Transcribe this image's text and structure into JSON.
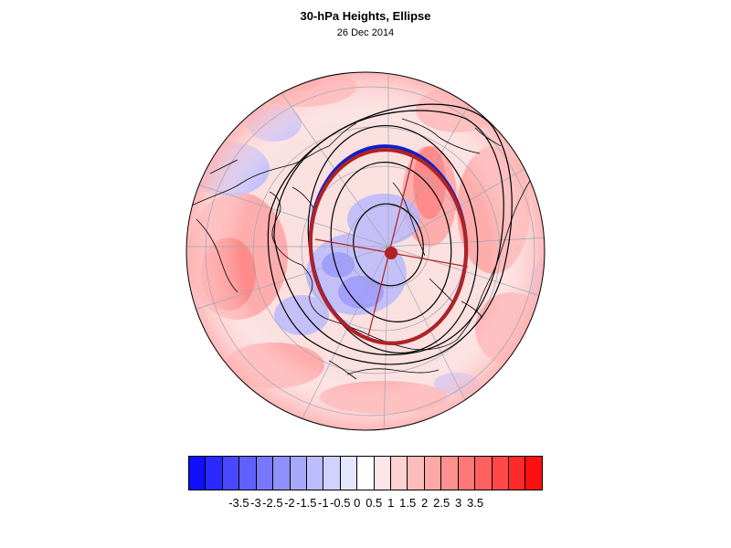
{
  "title": "30-hPa Heights, Ellipse",
  "subtitle": "26 Dec 2014",
  "colorbar": {
    "colors": [
      "#1010ff",
      "#2a2aff",
      "#4848ff",
      "#6060ff",
      "#7878ff",
      "#9090ff",
      "#a8a8ff",
      "#bcbcff",
      "#d2d2ff",
      "#e6e6ff",
      "#ffffff",
      "#ffe6e6",
      "#ffd2d2",
      "#ffbcbc",
      "#ffa8a8",
      "#ff9090",
      "#ff7878",
      "#ff6060",
      "#ff4848",
      "#ff2a2a",
      "#ff1010"
    ],
    "tick_labels": [
      "-3.5",
      "-3",
      "-2.5",
      "-2",
      "-1.5",
      "-1",
      "-0.5",
      "0",
      "0.5",
      "1",
      "1.5",
      "2",
      "2.5",
      "3",
      "3.5"
    ]
  },
  "legend_colors": {
    "observed_ellipse": "#1020c8",
    "fitted_ellipse": "#b22222",
    "contours": "#000000",
    "land_outline": "#000000"
  }
}
